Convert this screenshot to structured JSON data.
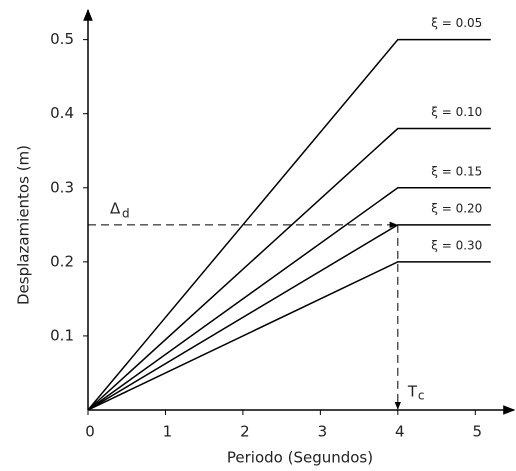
{
  "chart_data": {
    "type": "line",
    "xlabel": "Periodo (Segundos)",
    "ylabel": "Desplazamientos (m)",
    "xlim": [
      0,
      5.5
    ],
    "ylim": [
      0,
      0.54
    ],
    "xticks": [
      0,
      1,
      2,
      3,
      4,
      5
    ],
    "yticks": [
      0.1,
      0.2,
      0.3,
      0.4,
      0.5
    ],
    "series": [
      {
        "name": "ξ = 0.05",
        "color": "#000000",
        "x": [
          0,
          4,
          5.2
        ],
        "values": [
          0,
          0.5,
          0.5
        ]
      },
      {
        "name": "ξ = 0.10",
        "color": "#000000",
        "x": [
          0,
          4,
          5.2
        ],
        "values": [
          0,
          0.38,
          0.38
        ]
      },
      {
        "name": "ξ = 0.15",
        "color": "#000000",
        "x": [
          0,
          4,
          5.2
        ],
        "values": [
          0,
          0.3,
          0.3
        ]
      },
      {
        "name": "ξ = 0.20",
        "color": "#000000",
        "x": [
          0,
          4,
          5.2
        ],
        "values": [
          0,
          0.25,
          0.25
        ]
      },
      {
        "name": "ξ = 0.30",
        "color": "#000000",
        "x": [
          0,
          4,
          5.2
        ],
        "values": [
          0,
          0.2,
          0.2
        ]
      }
    ],
    "annotations": [
      {
        "text": "Δ",
        "sub": "d",
        "y": 0.25
      },
      {
        "text": "T",
        "sub": "c",
        "x": 4
      }
    ]
  }
}
